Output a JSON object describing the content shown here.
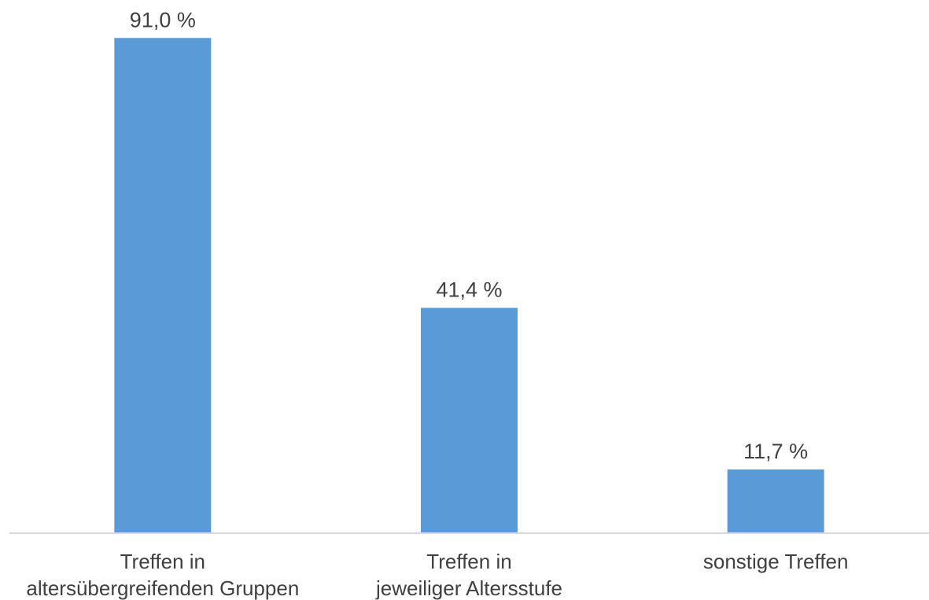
{
  "chart_data": {
    "type": "bar",
    "categories": [
      [
        "Treffen in",
        "altersübergreifenden Gruppen"
      ],
      [
        "Treffen in",
        "jeweiliger Altersstufe"
      ],
      [
        "sonstige Treffen"
      ]
    ],
    "values": [
      91.0,
      41.4,
      11.7
    ],
    "data_labels": [
      "91,0 %",
      "41,4 %",
      "11,7 %"
    ],
    "title": "",
    "xlabel": "",
    "ylabel": "",
    "ylim": [
      0,
      100
    ],
    "grid": false,
    "legend": "none",
    "colors": {
      "bar": "#5b9bd5",
      "axis": "#d9d9d9",
      "text": "#404040"
    }
  }
}
